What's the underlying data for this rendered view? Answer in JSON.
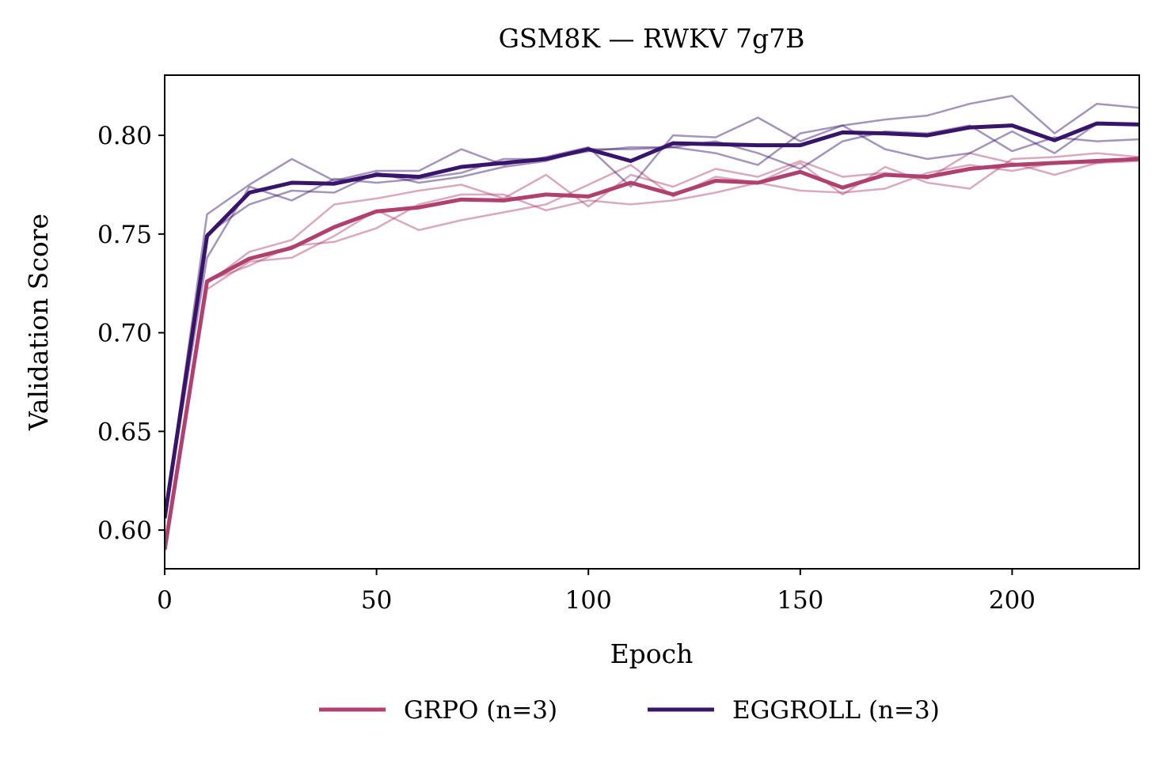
{
  "chart_data": {
    "type": "line",
    "title": "GSM8K — RWKV 7g7B",
    "xlabel": "Epoch",
    "ylabel": "Validation Score",
    "xlim": [
      0,
      230
    ],
    "ylim": [
      0.5804,
      0.8305
    ],
    "xticks": [
      0,
      50,
      100,
      150,
      200
    ],
    "xtick_labels": [
      "0",
      "50",
      "100",
      "150",
      "200"
    ],
    "yticks": [
      0.6,
      0.65,
      0.7,
      0.75,
      0.8
    ],
    "ytick_labels": [
      "0.60",
      "0.65",
      "0.70",
      "0.75",
      "0.80"
    ],
    "grid": false,
    "legend_position": "bottom-center",
    "x": [
      0,
      10,
      20,
      30,
      40,
      50,
      60,
      70,
      80,
      90,
      100,
      110,
      120,
      130,
      140,
      150,
      160,
      170,
      180,
      190,
      200,
      210,
      220,
      230
    ],
    "series": [
      {
        "name": "GRPO (n=3)",
        "color": "#b0406f",
        "mean": [
          0.59,
          0.726,
          0.7375,
          0.743,
          0.7535,
          0.7615,
          0.7635,
          0.7675,
          0.767,
          0.77,
          0.769,
          0.776,
          0.77,
          0.777,
          0.776,
          0.7815,
          0.7735,
          0.78,
          0.779,
          0.783,
          0.785,
          0.786,
          0.787,
          0.788
        ],
        "runs": [
          [
            0.59,
            0.725,
            0.741,
            0.747,
            0.765,
            0.768,
            0.772,
            0.775,
            0.768,
            0.78,
            0.764,
            0.78,
            0.774,
            0.783,
            0.779,
            0.787,
            0.779,
            0.781,
            0.778,
            0.791,
            0.786,
            0.78,
            0.786,
            0.789
          ],
          [
            0.59,
            0.722,
            0.736,
            0.738,
            0.749,
            0.762,
            0.752,
            0.757,
            0.761,
            0.765,
            0.775,
            0.785,
            0.769,
            0.779,
            0.776,
            0.786,
            0.77,
            0.784,
            0.776,
            0.773,
            0.788,
            0.789,
            0.791,
            0.789
          ],
          [
            0.59,
            0.726,
            0.734,
            0.744,
            0.746,
            0.753,
            0.765,
            0.77,
            0.77,
            0.762,
            0.767,
            0.765,
            0.767,
            0.771,
            0.776,
            0.772,
            0.771,
            0.773,
            0.781,
            0.785,
            0.782,
            0.786,
            0.786,
            0.787
          ]
        ]
      },
      {
        "name": "EGGROLL (n=3)",
        "color": "#38146b",
        "mean": [
          0.606,
          0.749,
          0.771,
          0.776,
          0.7755,
          0.78,
          0.779,
          0.784,
          0.786,
          0.788,
          0.793,
          0.787,
          0.796,
          0.7955,
          0.795,
          0.795,
          0.8015,
          0.801,
          0.8,
          0.804,
          0.805,
          0.7975,
          0.806,
          0.8055
        ],
        "runs": [
          [
            0.606,
            0.76,
            0.775,
            0.788,
            0.777,
            0.782,
            0.782,
            0.793,
            0.785,
            0.789,
            0.794,
            0.774,
            0.8,
            0.799,
            0.809,
            0.797,
            0.805,
            0.808,
            0.81,
            0.816,
            0.82,
            0.801,
            0.816,
            0.814
          ],
          [
            0.606,
            0.738,
            0.774,
            0.767,
            0.778,
            0.776,
            0.778,
            0.781,
            0.788,
            0.788,
            0.792,
            0.794,
            0.794,
            0.791,
            0.785,
            0.801,
            0.805,
            0.793,
            0.788,
            0.791,
            0.802,
            0.791,
            0.806,
            0.806
          ],
          [
            0.606,
            0.75,
            0.765,
            0.772,
            0.771,
            0.781,
            0.776,
            0.779,
            0.784,
            0.787,
            0.793,
            0.793,
            0.794,
            0.797,
            0.791,
            0.783,
            0.797,
            0.802,
            0.801,
            0.805,
            0.792,
            0.799,
            0.797,
            0.798
          ]
        ]
      }
    ]
  }
}
